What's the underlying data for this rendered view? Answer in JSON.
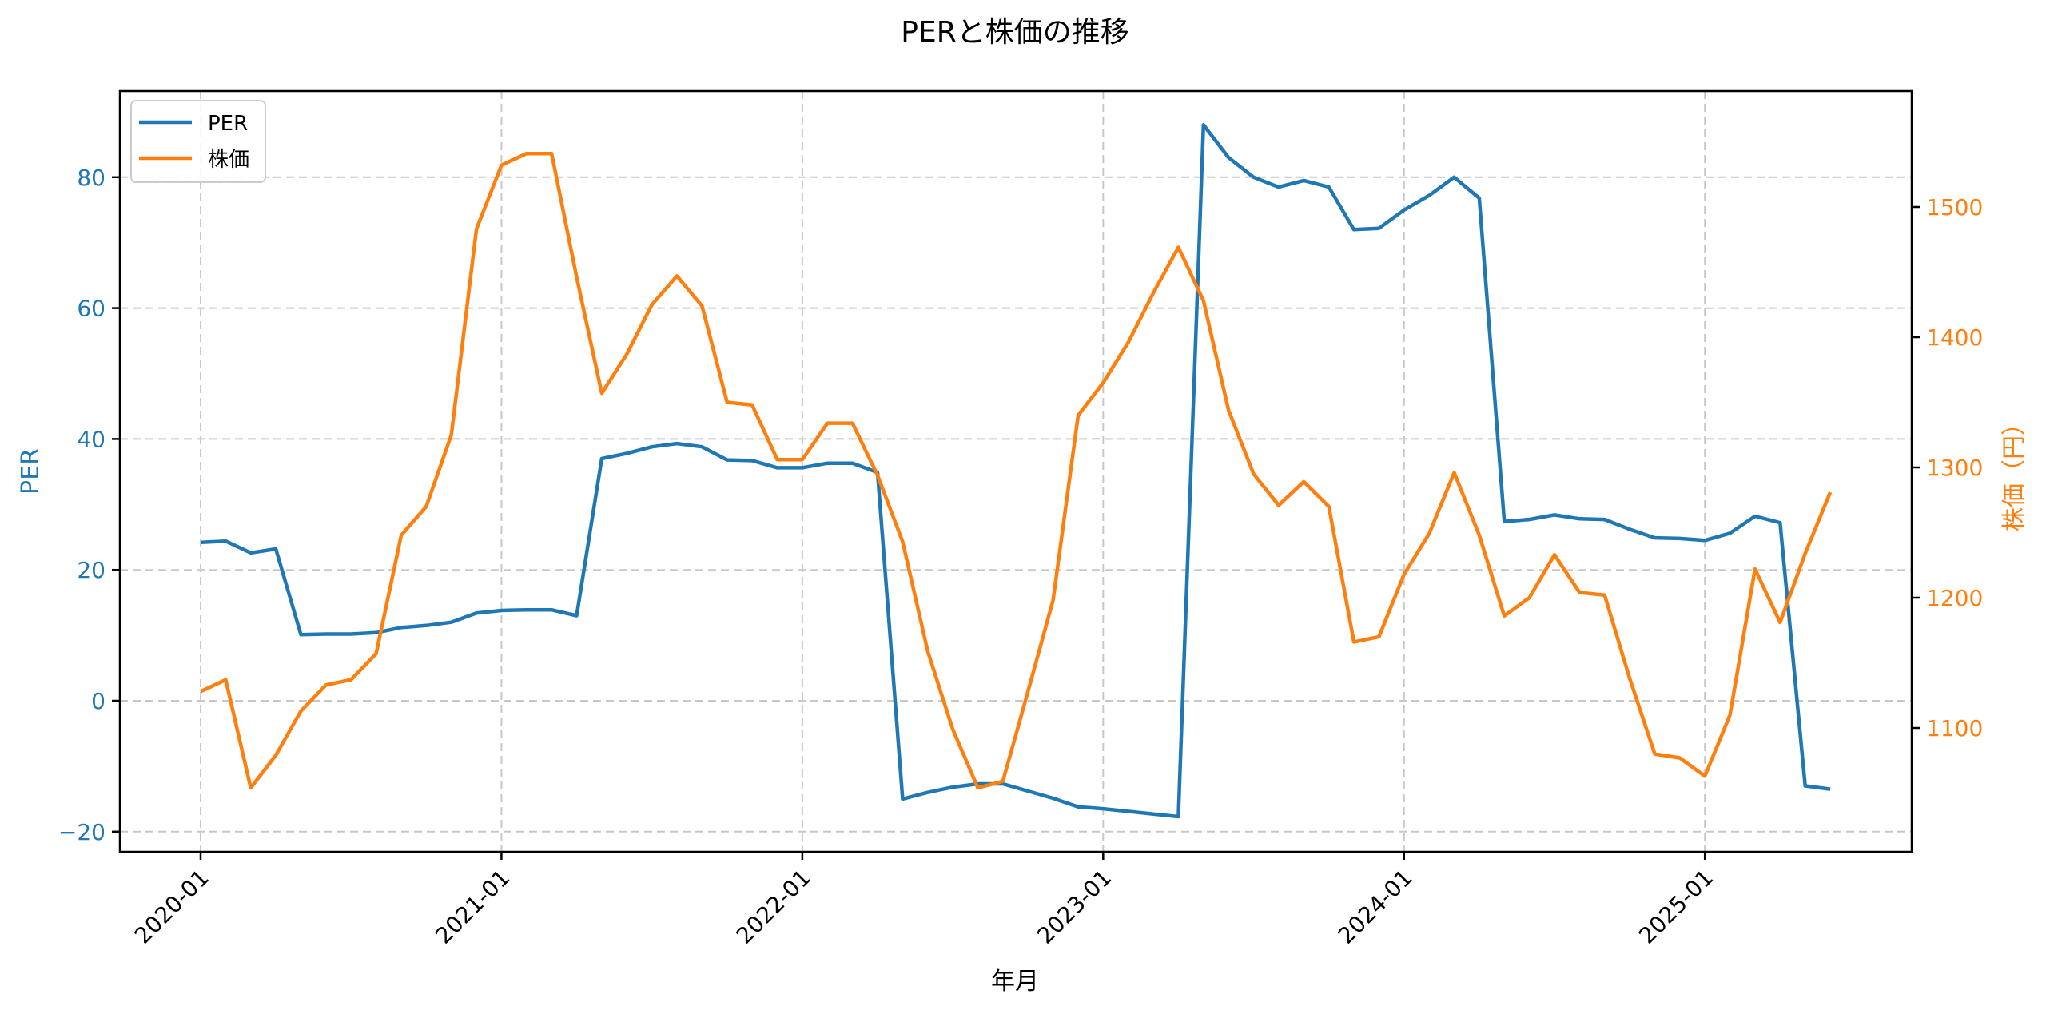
{
  "chart_data": {
    "type": "line",
    "title": "PERと株価の推移",
    "xlabel": "年月",
    "ylabel_left": "PER",
    "ylabel_right": "株価（円）",
    "x_ticks": [
      "2020-01",
      "2021-01",
      "2022-01",
      "2023-01",
      "2024-01",
      "2025-01"
    ],
    "y_left_ticks": [
      -20,
      0,
      20,
      40,
      60,
      80
    ],
    "y_right_ticks": [
      1100,
      1200,
      1300,
      1400,
      1500
    ],
    "y_left_lim": [
      -23.2,
      92.8
    ],
    "y_right_lim": [
      1010,
      1585
    ],
    "grid": true,
    "legend_position": "upper left",
    "x": [
      "2020-01",
      "2020-02",
      "2020-03",
      "2020-04",
      "2020-05",
      "2020-06",
      "2020-07",
      "2020-08",
      "2020-09",
      "2020-10",
      "2020-11",
      "2020-12",
      "2021-01",
      "2021-02",
      "2021-03",
      "2021-04",
      "2021-05",
      "2021-06",
      "2021-07",
      "2021-08",
      "2021-09",
      "2021-10",
      "2021-11",
      "2021-12",
      "2022-01",
      "2022-02",
      "2022-03",
      "2022-04",
      "2022-05",
      "2022-06",
      "2022-07",
      "2022-08",
      "2022-09",
      "2022-10",
      "2022-11",
      "2022-12",
      "2023-01",
      "2023-02",
      "2023-03",
      "2023-04",
      "2023-05",
      "2023-06",
      "2023-07",
      "2023-08",
      "2023-09",
      "2023-10",
      "2023-11",
      "2023-12",
      "2024-01",
      "2024-02",
      "2024-03",
      "2024-04",
      "2024-05",
      "2024-06",
      "2024-07",
      "2024-08",
      "2024-09",
      "2024-10",
      "2024-11",
      "2024-12",
      "2025-01",
      "2025-02",
      "2025-03",
      "2025-04",
      "2025-05",
      "2025-06"
    ],
    "series": [
      {
        "name": "PER",
        "axis": "left",
        "color": "#1f77b4",
        "values": [
          24.2,
          24.4,
          22.6,
          23.2,
          10.1,
          10.2,
          10.2,
          10.4,
          11.2,
          11.5,
          12.0,
          13.4,
          13.8,
          13.9,
          13.9,
          13.0,
          37.0,
          37.8,
          38.8,
          39.3,
          38.8,
          36.8,
          36.7,
          35.6,
          35.6,
          36.3,
          36.3,
          34.9,
          -15.0,
          -14.0,
          -13.2,
          -12.7,
          -12.7,
          -13.8,
          -14.9,
          -16.2,
          -16.5,
          -16.9,
          -17.3,
          -17.7,
          88.0,
          83.0,
          80.0,
          78.5,
          79.5,
          78.5,
          72.0,
          72.2,
          75.0,
          77.2,
          80.0,
          76.8,
          27.4,
          27.7,
          28.4,
          27.8,
          27.7,
          26.2,
          24.9,
          24.8,
          24.5,
          25.6,
          28.2,
          27.2,
          -13.0,
          -13.5
        ]
      },
      {
        "name": "株価",
        "axis": "right",
        "color": "#ff7f0e",
        "values": [
          1128,
          1137,
          1054,
          1079,
          1113,
          1133,
          1137,
          1157,
          1248,
          1270,
          1325,
          1483,
          1532,
          1541,
          1541,
          1446,
          1357,
          1387,
          1425,
          1447,
          1424,
          1350,
          1348,
          1306,
          1306,
          1334,
          1334,
          1294,
          1243,
          1159,
          1099,
          1054,
          1059,
          1128,
          1198,
          1340,
          1365,
          1396,
          1434,
          1469,
          1428,
          1344,
          1295,
          1271,
          1289,
          1270,
          1166,
          1170,
          1218,
          1249,
          1296,
          1248,
          1186,
          1200,
          1233,
          1204,
          1202,
          1138,
          1080,
          1077,
          1063,
          1110,
          1222,
          1181,
          1234,
          1281
        ]
      }
    ]
  },
  "legend": {
    "items": [
      {
        "label": "PER",
        "color": "#1f77b4"
      },
      {
        "label": "株価",
        "color": "#ff7f0e"
      }
    ]
  }
}
